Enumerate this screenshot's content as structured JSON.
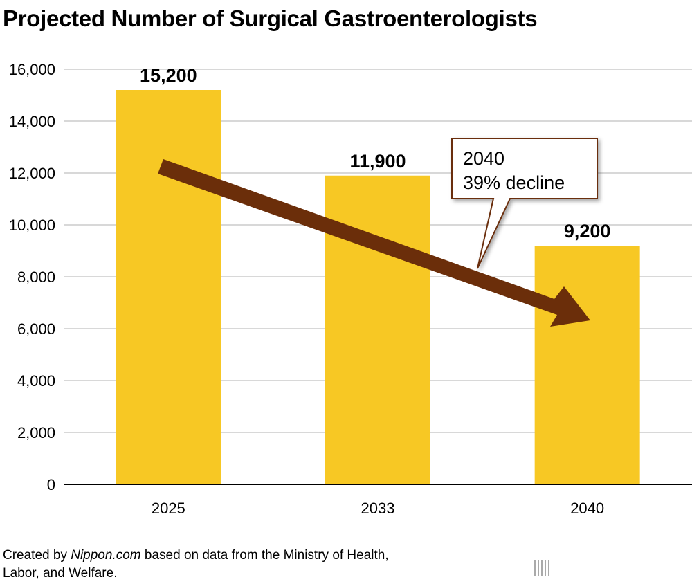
{
  "chart_data": {
    "type": "bar",
    "title": "Projected Number of Surgical Gastroenterologists",
    "categories": [
      "2025",
      "2033",
      "2040"
    ],
    "values": [
      15200,
      11900,
      9200
    ],
    "data_labels": [
      "15,200",
      "11,900",
      "9,200"
    ],
    "ylim": [
      0,
      16000
    ],
    "yticks": [
      0,
      2000,
      4000,
      6000,
      8000,
      10000,
      12000,
      14000,
      16000
    ],
    "ytick_labels": [
      "0",
      "2,000",
      "4,000",
      "6,000",
      "8,000",
      "10,000",
      "12,000",
      "14,000",
      "16,000"
    ],
    "xlabel": "",
    "ylabel": "",
    "grid": true,
    "annotation": {
      "line1": "2040",
      "line2": "39% decline"
    },
    "colors": {
      "bar": "#f7c824",
      "arrow": "#6b2e0a",
      "grid": "#cccccc"
    }
  },
  "source": {
    "prefix": "Created by ",
    "site": "Nippon.com",
    "suffix": " based on data from the Ministry of Health,",
    "line2": "Labor, and Welfare."
  },
  "logo": {
    "text": "nippon",
    "dot": ".",
    "com": "com"
  }
}
